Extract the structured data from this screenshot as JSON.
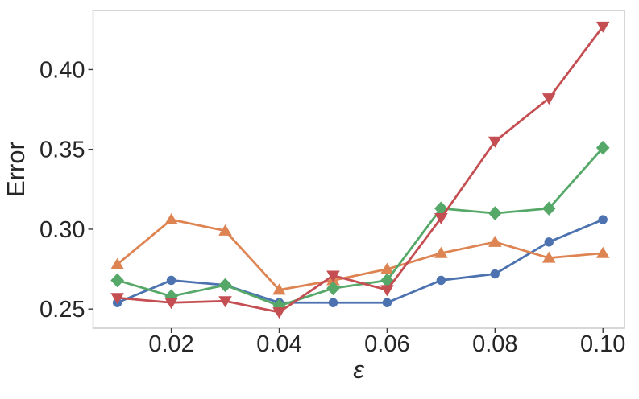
{
  "chart_data": {
    "type": "line",
    "title": "",
    "xlabel": "ε",
    "ylabel": "Error",
    "x": [
      0.01,
      0.02,
      0.03,
      0.04,
      0.05,
      0.06,
      0.07,
      0.08,
      0.09,
      0.1
    ],
    "series": [
      {
        "name": "blue-circles",
        "marker": "circle",
        "color": "#4C72B0",
        "values": [
          0.254,
          0.268,
          0.265,
          0.254,
          0.254,
          0.254,
          0.268,
          0.272,
          0.292,
          0.306
        ]
      },
      {
        "name": "orange-triangles-up",
        "marker": "triangle-up",
        "color": "#DD8452",
        "values": [
          0.278,
          0.306,
          0.299,
          0.262,
          0.268,
          0.275,
          0.285,
          0.292,
          0.282,
          0.285
        ]
      },
      {
        "name": "green-diamonds",
        "marker": "diamond",
        "color": "#55A868",
        "values": [
          0.268,
          0.258,
          0.265,
          0.252,
          0.263,
          0.268,
          0.313,
          0.31,
          0.313,
          0.351
        ]
      },
      {
        "name": "red-triangles-down",
        "marker": "triangle-down",
        "color": "#C44E52",
        "values": [
          0.257,
          0.254,
          0.255,
          0.248,
          0.271,
          0.262,
          0.307,
          0.355,
          0.382,
          0.427
        ]
      }
    ],
    "xlim": [
      0.0055,
      0.104
    ],
    "ylim": [
      0.238,
      0.437
    ],
    "xticks": [
      0.02,
      0.04,
      0.06,
      0.08,
      0.1
    ],
    "xtick_labels": [
      "0.02",
      "0.04",
      "0.06",
      "0.08",
      "0.10"
    ],
    "yticks": [
      0.25,
      0.3,
      0.35,
      0.4
    ],
    "ytick_labels": [
      "0.25",
      "0.30",
      "0.35",
      "0.40"
    ],
    "grid": false,
    "legend": "none",
    "colors": {
      "frame": "#cdcdcd",
      "tick": "#3a3a3a",
      "text": "#262626",
      "background": "#ffffff"
    }
  }
}
